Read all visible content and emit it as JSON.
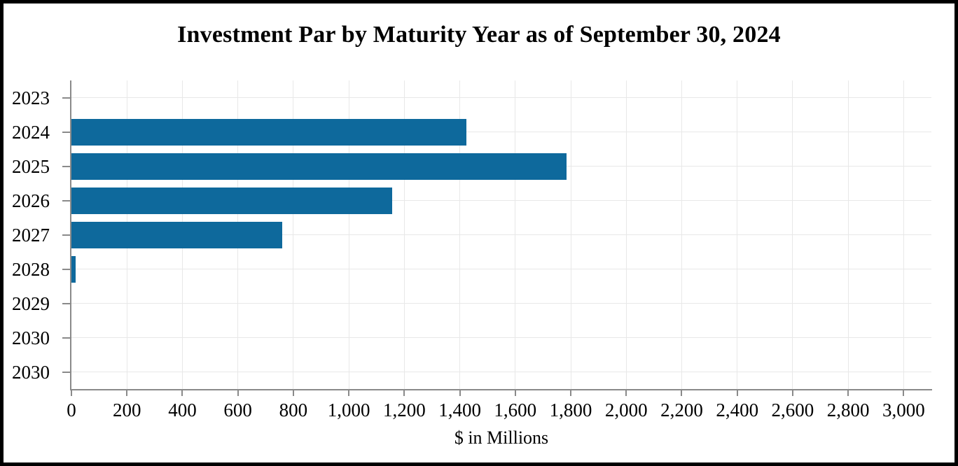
{
  "chart_data": {
    "type": "bar",
    "orientation": "horizontal",
    "title": "Investment Par by Maturity Year as of September 30, 2024",
    "xlabel": "$ in Millions",
    "categories": [
      "2023",
      "2024",
      "2025",
      "2026",
      "2027",
      "2028",
      "2029",
      "2030",
      "2030"
    ],
    "values": [
      0,
      1425,
      1785,
      1155,
      760,
      15,
      0,
      0,
      0
    ],
    "xlim": [
      0,
      3100
    ],
    "x_tick_values": [
      0,
      200,
      400,
      600,
      800,
      1000,
      1200,
      1400,
      1600,
      1800,
      2000,
      2200,
      2400,
      2600,
      2800,
      3000
    ],
    "x_tick_labels": [
      "0",
      "200",
      "400",
      "600",
      "800",
      "1,000",
      "1,200",
      "1,400",
      "1,600",
      "1,800",
      "2,000",
      "2,200",
      "2,400",
      "2,600",
      "2,800",
      "3,000"
    ],
    "grid": true,
    "legend_position": "none",
    "bar_color": "#0e699c",
    "axis_color": "#8a8a8a",
    "gridline_color": "#e8e8e8",
    "title_color": "#000000",
    "label_color": "#000000",
    "background_color": "#ffffff",
    "border_color": "#000000"
  }
}
